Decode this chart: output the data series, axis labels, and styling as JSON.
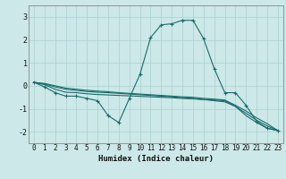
{
  "xlabel": "Humidex (Indice chaleur)",
  "background_color": "#cce8e8",
  "line_color": "#1a6b6b",
  "grid_color": "#aacfcf",
  "xlim": [
    -0.5,
    23.5
  ],
  "ylim": [
    -2.5,
    3.5
  ],
  "yticks": [
    -2,
    -1,
    0,
    1,
    2,
    3
  ],
  "xticks": [
    0,
    1,
    2,
    3,
    4,
    5,
    6,
    7,
    8,
    9,
    10,
    11,
    12,
    13,
    14,
    15,
    16,
    17,
    18,
    19,
    20,
    21,
    22,
    23
  ],
  "series": [
    {
      "x": [
        0,
        1,
        2,
        3,
        4,
        5,
        6,
        7,
        8,
        9,
        10,
        11,
        12,
        13,
        14,
        15,
        16,
        17,
        18,
        19,
        20,
        21,
        22,
        23
      ],
      "y": [
        0.15,
        -0.05,
        -0.3,
        -0.45,
        -0.45,
        -0.55,
        -0.65,
        -1.3,
        -1.6,
        -0.55,
        0.5,
        2.1,
        2.65,
        2.7,
        2.85,
        2.85,
        2.05,
        0.75,
        -0.3,
        -0.3,
        -0.85,
        -1.55,
        -1.85,
        -1.95
      ],
      "marker": "+"
    },
    {
      "x": [
        0,
        1,
        2,
        3,
        4,
        5,
        6,
        7,
        8,
        9,
        10,
        11,
        12,
        13,
        14,
        15,
        16,
        17,
        18,
        19,
        20,
        21,
        22,
        23
      ],
      "y": [
        0.15,
        0.05,
        -0.15,
        -0.28,
        -0.3,
        -0.35,
        -0.38,
        -0.4,
        -0.42,
        -0.44,
        -0.46,
        -0.48,
        -0.5,
        -0.52,
        -0.55,
        -0.57,
        -0.6,
        -0.62,
        -0.65,
        -0.9,
        -1.3,
        -1.6,
        -1.85,
        -1.95
      ],
      "marker": null
    },
    {
      "x": [
        0,
        1,
        2,
        3,
        4,
        5,
        6,
        7,
        8,
        9,
        10,
        11,
        12,
        13,
        14,
        15,
        16,
        17,
        18,
        19,
        20,
        21,
        22,
        23
      ],
      "y": [
        0.15,
        0.08,
        -0.05,
        -0.15,
        -0.2,
        -0.25,
        -0.28,
        -0.3,
        -0.33,
        -0.36,
        -0.39,
        -0.42,
        -0.45,
        -0.48,
        -0.52,
        -0.55,
        -0.6,
        -0.65,
        -0.7,
        -0.9,
        -1.2,
        -1.5,
        -1.75,
        -1.95
      ],
      "marker": null
    },
    {
      "x": [
        0,
        1,
        2,
        3,
        4,
        5,
        6,
        7,
        8,
        9,
        10,
        11,
        12,
        13,
        14,
        15,
        16,
        17,
        18,
        19,
        20,
        21,
        22,
        23
      ],
      "y": [
        0.15,
        0.1,
        0.0,
        -0.1,
        -0.15,
        -0.2,
        -0.23,
        -0.26,
        -0.3,
        -0.33,
        -0.36,
        -0.39,
        -0.42,
        -0.45,
        -0.48,
        -0.5,
        -0.55,
        -0.58,
        -0.62,
        -0.85,
        -1.1,
        -1.4,
        -1.65,
        -1.95
      ],
      "marker": null
    }
  ]
}
